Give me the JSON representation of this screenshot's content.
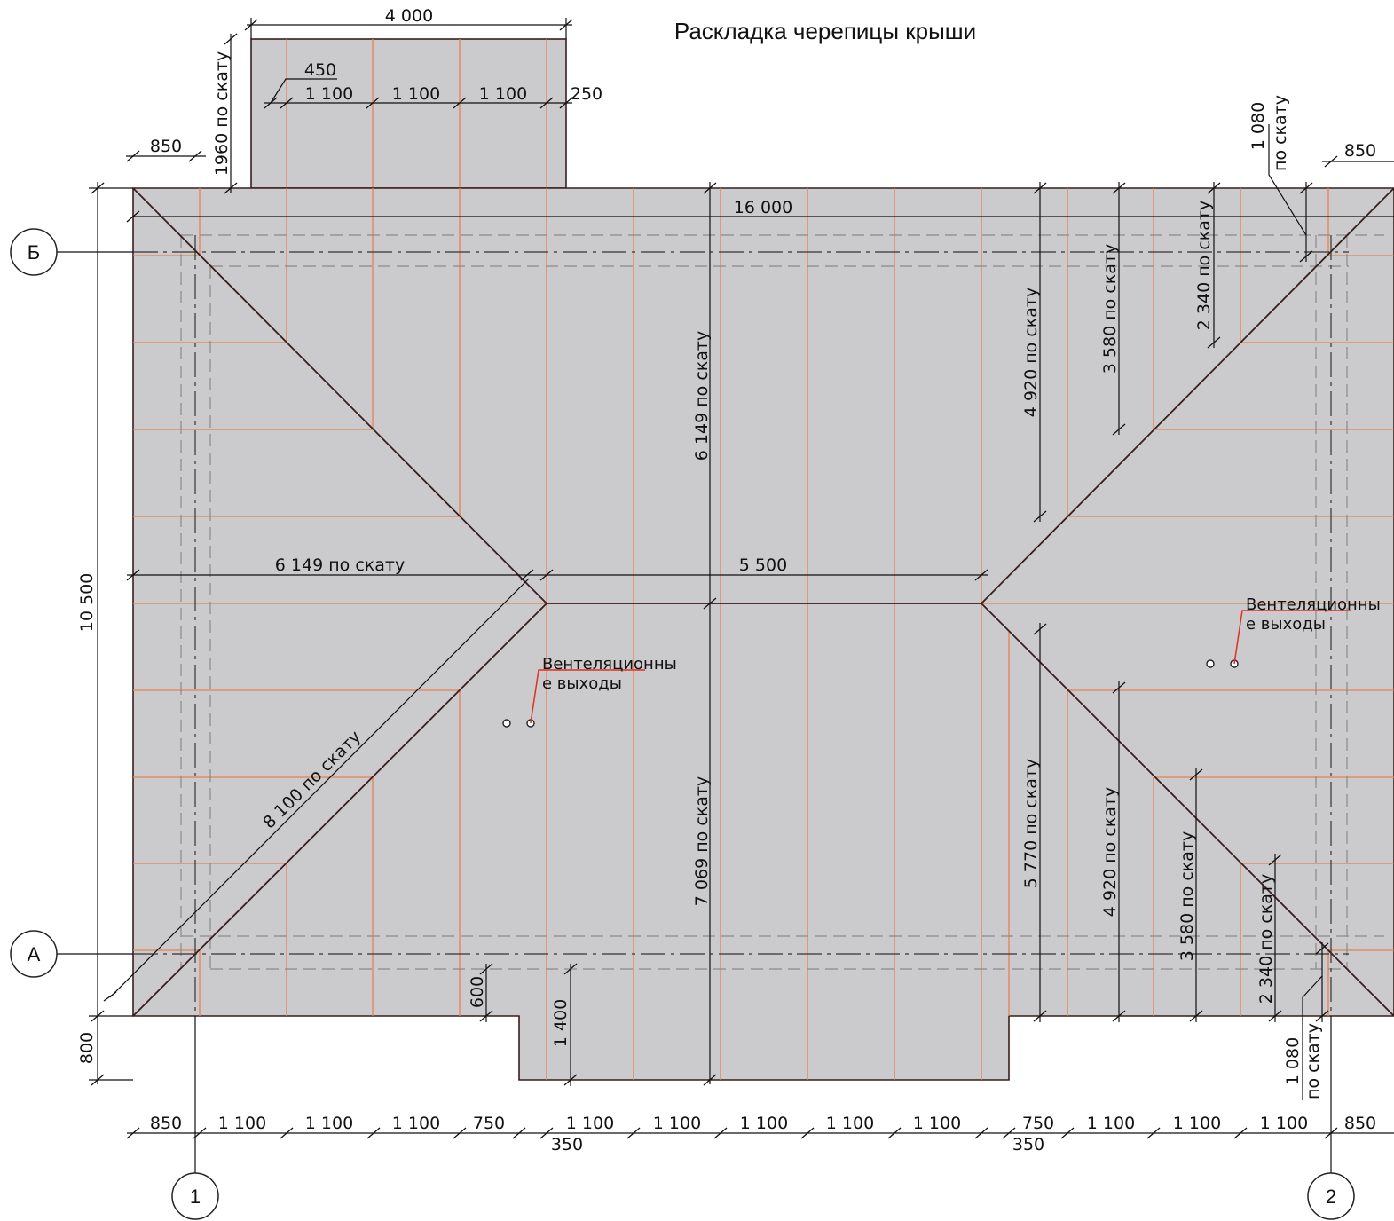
{
  "title": "Раскладка черепицы крыши",
  "axes": {
    "rows": [
      {
        "label": "Б"
      },
      {
        "label": "А"
      }
    ],
    "cols": [
      {
        "label": "1"
      },
      {
        "label": "2"
      }
    ]
  },
  "notes": {
    "vent_left": [
      "Вентеляционны",
      "е выходы"
    ],
    "vent_right": [
      "Вентеляционны",
      "е выходы"
    ]
  },
  "dimensions": {
    "dormer_width": "4 000",
    "dormer_450": "450",
    "dormer_1100_a": "1 100",
    "dormer_1100_b": "1 100",
    "dormer_1100_c": "1 100",
    "dormer_250": "250",
    "dormer_1960": "1960 по скату",
    "top_left_850": "850",
    "top_right_850": "850",
    "top_right_1080_a": "1 080",
    "top_right_1080_b": "по скату",
    "overall_16000": "16 000",
    "overall_10500": "10 500",
    "left_800": "800",
    "hip_6149_horizontal": "6 149 по скату",
    "ridge_5500": "5 500",
    "center_6149": "6 149 по скату",
    "center_7069": "7 069 по скату",
    "hip_8100": "8 100 по скату",
    "right_top_4920": "4 920 по скату",
    "right_top_3580": "3 580 по скату",
    "right_top_2340": "2 340 по скату",
    "right_bot_5770": "5 770 по скату",
    "right_bot_4920": "4 920 по скату",
    "right_bot_3580": "3 580 по скату",
    "right_bot_2340": "2 340 по скату",
    "bot_1080_a": "1 080",
    "bot_1080_b": "по скату",
    "bump_600": "600",
    "bump_1400": "1 400",
    "bottom_chain": [
      "850",
      "1 100",
      "1 100",
      "1 100",
      "750",
      "1 100",
      "1 100",
      "1 100",
      "1 100",
      "1 100",
      "750",
      "1 100",
      "1 100",
      "1 100",
      "850"
    ],
    "bottom_350_left": "350",
    "bottom_350_right": "350"
  }
}
